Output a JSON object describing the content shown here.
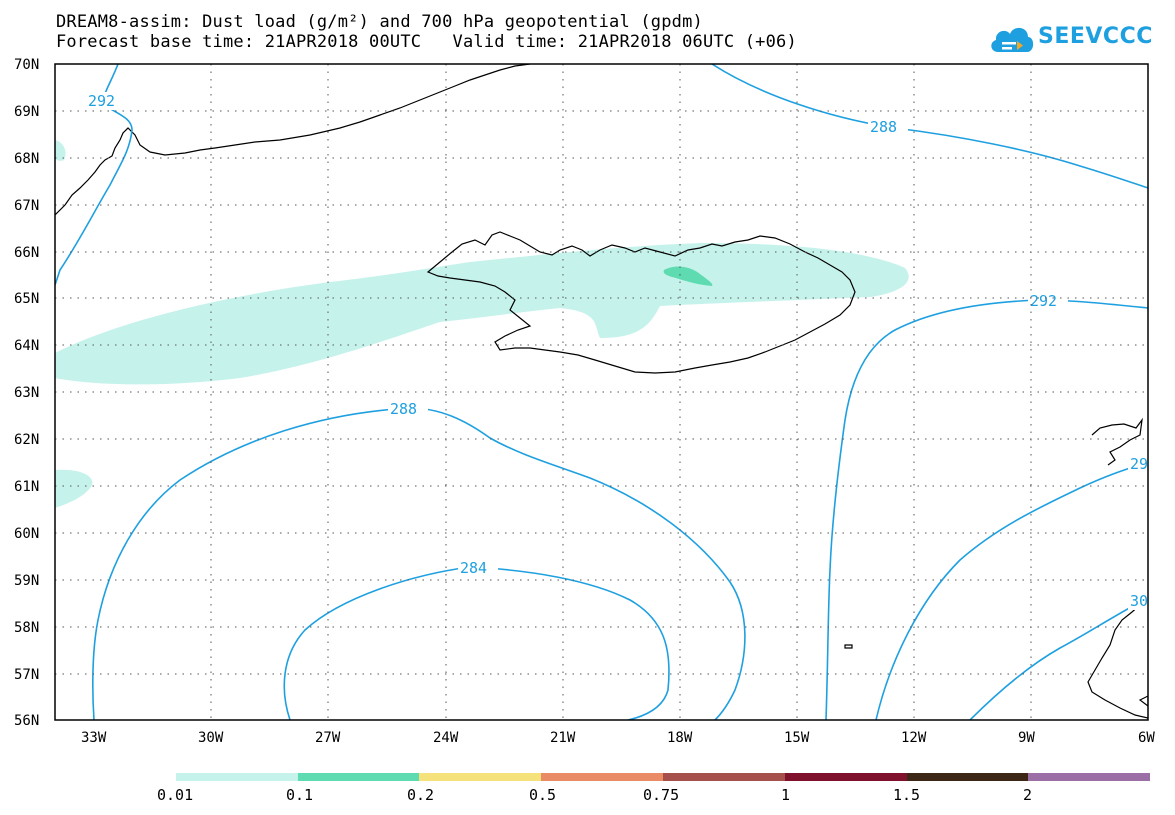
{
  "header": {
    "title_line1": "DREAM8-assim: Dust load (g/m²) and 700 hPa geopotential (gpdm)",
    "title_line2": "Forecast base time: 21APR2018 00UTC   Valid time: 21APR2018 06UTC (+06)"
  },
  "logo": {
    "text": "SEEVCCC",
    "icon": "cloud-icon"
  },
  "map": {
    "lat_labels": [
      "70N",
      "69N",
      "68N",
      "67N",
      "66N",
      "65N",
      "64N",
      "63N",
      "62N",
      "61N",
      "60N",
      "59N",
      "58N",
      "57N",
      "56N"
    ],
    "lon_labels": [
      "33W",
      "30W",
      "27W",
      "24W",
      "21W",
      "18W",
      "15W",
      "12W",
      "9W",
      "6W"
    ],
    "contour_labels": [
      "292",
      "288",
      "288",
      "292",
      "284",
      "29",
      "30"
    ]
  },
  "colorbar": {
    "labels": [
      "0.01",
      "0.1",
      "0.2",
      "0.5",
      "0.75",
      "1",
      "1.5",
      "2"
    ],
    "colors": [
      "#c6f2ec",
      "#5edbb0",
      "#f6e27a",
      "#e98c66",
      "#a5504a",
      "#80112c",
      "#3c2615",
      "#9b6fa5"
    ]
  },
  "colors": {
    "contour": "#1ea0e0",
    "dust_light": "#c6f2ec",
    "dust_mid": "#5edbb0"
  }
}
